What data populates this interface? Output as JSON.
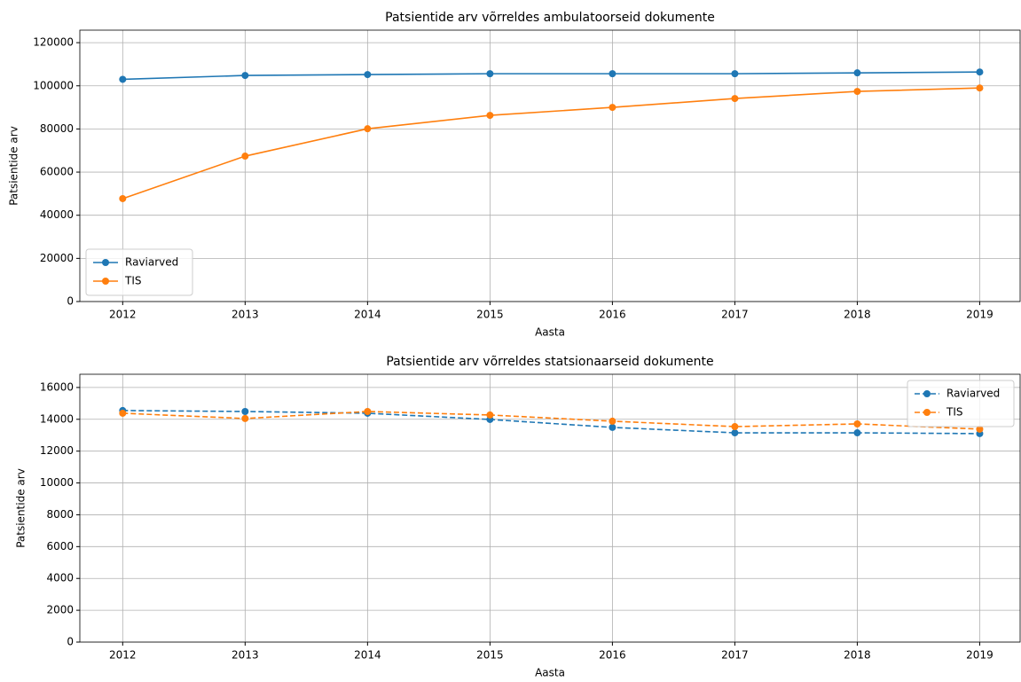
{
  "chart_data": [
    {
      "type": "line",
      "title": "Patsientide arv võrreldes ambulatoorseid dokumente",
      "xlabel": "Aasta",
      "ylabel": "Patsientide arv",
      "x": [
        2012,
        2013,
        2014,
        2015,
        2016,
        2017,
        2018,
        2019
      ],
      "series": [
        {
          "name": "Raviarved",
          "color": "#1f77b4",
          "linestyle": "solid",
          "values": [
            103000,
            104800,
            105200,
            105600,
            105600,
            105600,
            106000,
            106400
          ]
        },
        {
          "name": "TIS",
          "color": "#ff7f0e",
          "linestyle": "solid",
          "values": [
            47700,
            67400,
            80100,
            86300,
            90000,
            94100,
            97400,
            99000
          ]
        }
      ],
      "xlim": [
        2011.65,
        2019.33
      ],
      "ylim": [
        0,
        125800
      ],
      "xticks": [
        2012,
        2013,
        2014,
        2015,
        2016,
        2017,
        2018,
        2019
      ],
      "yticks": [
        0,
        20000,
        40000,
        60000,
        80000,
        100000,
        120000
      ],
      "grid": true,
      "legend": "lower left"
    },
    {
      "type": "line",
      "title": "Patsientide arv võrreldes statsionaarseid dokumente",
      "xlabel": "Aasta",
      "ylabel": "Patsientide arv",
      "x": [
        2012,
        2013,
        2014,
        2015,
        2016,
        2017,
        2018,
        2019
      ],
      "series": [
        {
          "name": "Raviarved",
          "color": "#1f77b4",
          "linestyle": "dashed",
          "values": [
            14550,
            14490,
            14380,
            13990,
            13490,
            13150,
            13150,
            13100
          ]
        },
        {
          "name": "TIS",
          "color": "#ff7f0e",
          "linestyle": "dashed",
          "values": [
            14380,
            14050,
            14490,
            14270,
            13880,
            13540,
            13710,
            13380
          ]
        }
      ],
      "xlim": [
        2011.65,
        2019.33
      ],
      "ylim": [
        0,
        16830
      ],
      "xticks": [
        2012,
        2013,
        2014,
        2015,
        2016,
        2017,
        2018,
        2019
      ],
      "yticks": [
        0,
        2000,
        4000,
        6000,
        8000,
        10000,
        12000,
        14000,
        16000
      ],
      "grid": true,
      "legend": "upper right"
    }
  ]
}
